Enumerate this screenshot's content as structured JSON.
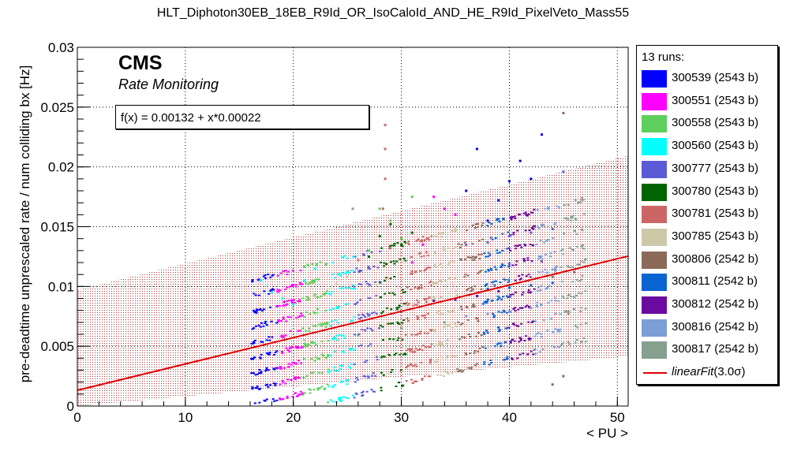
{
  "title": "HLT_Diphoton30EB_18EB_R9Id_OR_IsoCaloId_AND_HE_R9Id_PixelVeto_Mass55",
  "cms_label": "CMS",
  "cms_sublabel": "Rate Monitoring",
  "fit_formula": "f(x) = 0.00132 + x*0.00022",
  "legend": {
    "header": "13 runs:",
    "entries": [
      {
        "label": "300539 (2543 b)",
        "color": "#0000ff"
      },
      {
        "label": "300551 (2543 b)",
        "color": "#ff00ff"
      },
      {
        "label": "300558 (2543 b)",
        "color": "#5ccf5c"
      },
      {
        "label": "300560 (2543 b)",
        "color": "#00ffff"
      },
      {
        "label": "300777 (2543 b)",
        "color": "#5b5bd7"
      },
      {
        "label": "300780 (2543 b)",
        "color": "#006400"
      },
      {
        "label": "300781 (2543 b)",
        "color": "#cc6666"
      },
      {
        "label": "300785 (2543 b)",
        "color": "#cdc8a8"
      },
      {
        "label": "300806 (2542 b)",
        "color": "#8b6a5a"
      },
      {
        "label": "300811 (2542 b)",
        "color": "#0a64d2"
      },
      {
        "label": "300812 (2542 b)",
        "color": "#6a0aa0"
      },
      {
        "label": "300816 (2542 b)",
        "color": "#7b9ed6"
      },
      {
        "label": "300817 (2542 b)",
        "color": "#86a090"
      }
    ],
    "fit_name": "linearFit",
    "fit_sigma": "(3.0σ)",
    "fit_color": "#e00000"
  },
  "chart_data": {
    "type": "scatter",
    "title": "HLT_Diphoton30EB_18EB_R9Id_OR_IsoCaloId_AND_HE_R9Id_PixelVeto_Mass55",
    "xlabel": "< PU >",
    "ylabel": "pre-deadtime unprescaled rate / num colliding bx [Hz]",
    "xlim": [
      0,
      51
    ],
    "ylim": [
      0,
      0.03
    ],
    "xticks": [
      "0",
      "10",
      "20",
      "30",
      "40",
      "50"
    ],
    "yticks": [
      "0",
      "0.005",
      "0.01",
      "0.015",
      "0.02",
      "0.025",
      "0.03"
    ],
    "grid": true,
    "legend_position": "right",
    "fit": {
      "intercept": 0.00132,
      "slope": 0.00022,
      "band_sigma": 3.0,
      "band_halfwidth": 0.0084
    },
    "series": [
      {
        "name": "300539 (2543 b)",
        "color": "#0000ff",
        "points": [
          [
            38,
            0.0155
          ],
          [
            39,
            0.0172
          ],
          [
            40,
            0.0188
          ],
          [
            42,
            0.019
          ],
          [
            43,
            0.0227
          ],
          [
            41,
            0.0205
          ],
          [
            37,
            0.0215
          ],
          [
            36,
            0.018
          ]
        ]
      },
      {
        "name": "300551 (2543 b)",
        "color": "#ff00ff",
        "points": [
          [
            33,
            0.0175
          ],
          [
            34,
            0.0165
          ],
          [
            35,
            0.016
          ],
          [
            31,
            0.012
          ],
          [
            32,
            0.0135
          ]
        ]
      },
      {
        "name": "300558 (2543 b)",
        "color": "#5ccf5c",
        "points": [
          [
            28,
            0.0165
          ],
          [
            29,
            0.0155
          ],
          [
            30,
            0.014
          ],
          [
            27,
            0.013
          ],
          [
            31,
            0.0175
          ]
        ]
      },
      {
        "name": "300560 (2543 b)",
        "color": "#00ffff",
        "points": [
          [
            17,
            0.0105
          ],
          [
            18,
            0.0095
          ],
          [
            19,
            0.009
          ],
          [
            20,
            0.0085
          ],
          [
            21,
            0.0105
          ],
          [
            22,
            0.0115
          ]
        ]
      },
      {
        "name": "300777 (2543 b)",
        "color": "#5b5bd7",
        "points": [
          [
            36,
            0.0135
          ],
          [
            38,
            0.0137
          ],
          [
            40,
            0.0142
          ],
          [
            42,
            0.0145
          ],
          [
            44,
            0.0148
          ],
          [
            45,
            0.0196
          ],
          [
            40,
            0.0119
          ],
          [
            43,
            0.0121
          ]
        ]
      },
      {
        "name": "300780 (2543 b)",
        "color": "#006400",
        "points": [
          [
            28,
            0.0142
          ],
          [
            29,
            0.0152
          ],
          [
            30,
            0.0135
          ],
          [
            31,
            0.0145
          ],
          [
            27,
            0.0125
          ]
        ]
      },
      {
        "name": "300781 (2543 b)",
        "color": "#cc6666",
        "points": [
          [
            28.5,
            0.0235
          ],
          [
            28.5,
            0.0215
          ],
          [
            28.5,
            0.019
          ],
          [
            28.3,
            0.0165
          ],
          [
            29,
            0.0132
          ],
          [
            26,
            0.0122
          ]
        ]
      },
      {
        "name": "300785 (2543 b)",
        "color": "#cdc8a8",
        "points": [
          [
            18,
            0.0072
          ],
          [
            20,
            0.0082
          ],
          [
            22,
            0.0092
          ],
          [
            24,
            0.0102
          ],
          [
            25,
            0.0108
          ],
          [
            21,
            0.0055
          ]
        ]
      },
      {
        "name": "300806 (2542 b)",
        "color": "#8b6a5a",
        "points": [
          [
            44,
            0.0108
          ],
          [
            46,
            0.0112
          ],
          [
            45,
            0.0245
          ],
          [
            45,
            0.0025
          ],
          [
            44,
            0.0018
          ]
        ]
      },
      {
        "name": "300811 (2542 b)",
        "color": "#0a64d2",
        "points": [
          [
            38,
            0.0098
          ],
          [
            40,
            0.0099
          ],
          [
            42,
            0.0101
          ],
          [
            44,
            0.0103
          ]
        ]
      },
      {
        "name": "300812 (2542 b)",
        "color": "#6a0aa0",
        "points": [
          [
            33,
            0.0088
          ],
          [
            35,
            0.0089
          ],
          [
            37,
            0.0092
          ],
          [
            39,
            0.0096
          ]
        ]
      },
      {
        "name": "300816 (2542 b)",
        "color": "#7b9ed6",
        "points": [
          [
            36,
            0.0075
          ],
          [
            38,
            0.0077
          ],
          [
            40,
            0.0079
          ],
          [
            42,
            0.0082
          ]
        ]
      },
      {
        "name": "300817 (2542 b)",
        "color": "#86a090",
        "points": [
          [
            25.5,
            0.0165
          ],
          [
            30,
            0.0065
          ],
          [
            34,
            0.007
          ],
          [
            26,
            0.0059
          ]
        ]
      }
    ]
  }
}
